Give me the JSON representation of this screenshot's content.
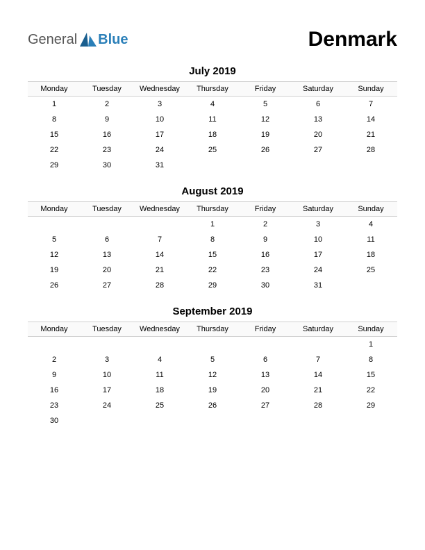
{
  "logo": {
    "part1": "General",
    "part2": "Blue",
    "mark_color": "#1a5f8f"
  },
  "title": "Denmark",
  "weekdays": [
    "Monday",
    "Tuesday",
    "Wednesday",
    "Thursday",
    "Friday",
    "Saturday",
    "Sunday"
  ],
  "months": [
    {
      "name": "July 2019",
      "weeks": [
        [
          "1",
          "2",
          "3",
          "4",
          "5",
          "6",
          "7"
        ],
        [
          "8",
          "9",
          "10",
          "11",
          "12",
          "13",
          "14"
        ],
        [
          "15",
          "16",
          "17",
          "18",
          "19",
          "20",
          "21"
        ],
        [
          "22",
          "23",
          "24",
          "25",
          "26",
          "27",
          "28"
        ],
        [
          "29",
          "30",
          "31",
          "",
          "",
          "",
          ""
        ]
      ]
    },
    {
      "name": "August 2019",
      "weeks": [
        [
          "",
          "",
          "",
          "1",
          "2",
          "3",
          "4"
        ],
        [
          "5",
          "6",
          "7",
          "8",
          "9",
          "10",
          "11"
        ],
        [
          "12",
          "13",
          "14",
          "15",
          "16",
          "17",
          "18"
        ],
        [
          "19",
          "20",
          "21",
          "22",
          "23",
          "24",
          "25"
        ],
        [
          "26",
          "27",
          "28",
          "29",
          "30",
          "31",
          ""
        ]
      ]
    },
    {
      "name": "September 2019",
      "weeks": [
        [
          "",
          "",
          "",
          "",
          "",
          "",
          "1"
        ],
        [
          "2",
          "3",
          "4",
          "5",
          "6",
          "7",
          "8"
        ],
        [
          "9",
          "10",
          "11",
          "12",
          "13",
          "14",
          "15"
        ],
        [
          "16",
          "17",
          "18",
          "19",
          "20",
          "21",
          "22"
        ],
        [
          "23",
          "24",
          "25",
          "26",
          "27",
          "28",
          "29"
        ],
        [
          "30",
          "",
          "",
          "",
          "",
          "",
          ""
        ]
      ]
    }
  ],
  "colors": {
    "header_border": "#d0d0d0",
    "header_bg": "#fafafa",
    "text": "#000000",
    "logo_gray": "#555555",
    "logo_blue": "#2a7fb8"
  }
}
